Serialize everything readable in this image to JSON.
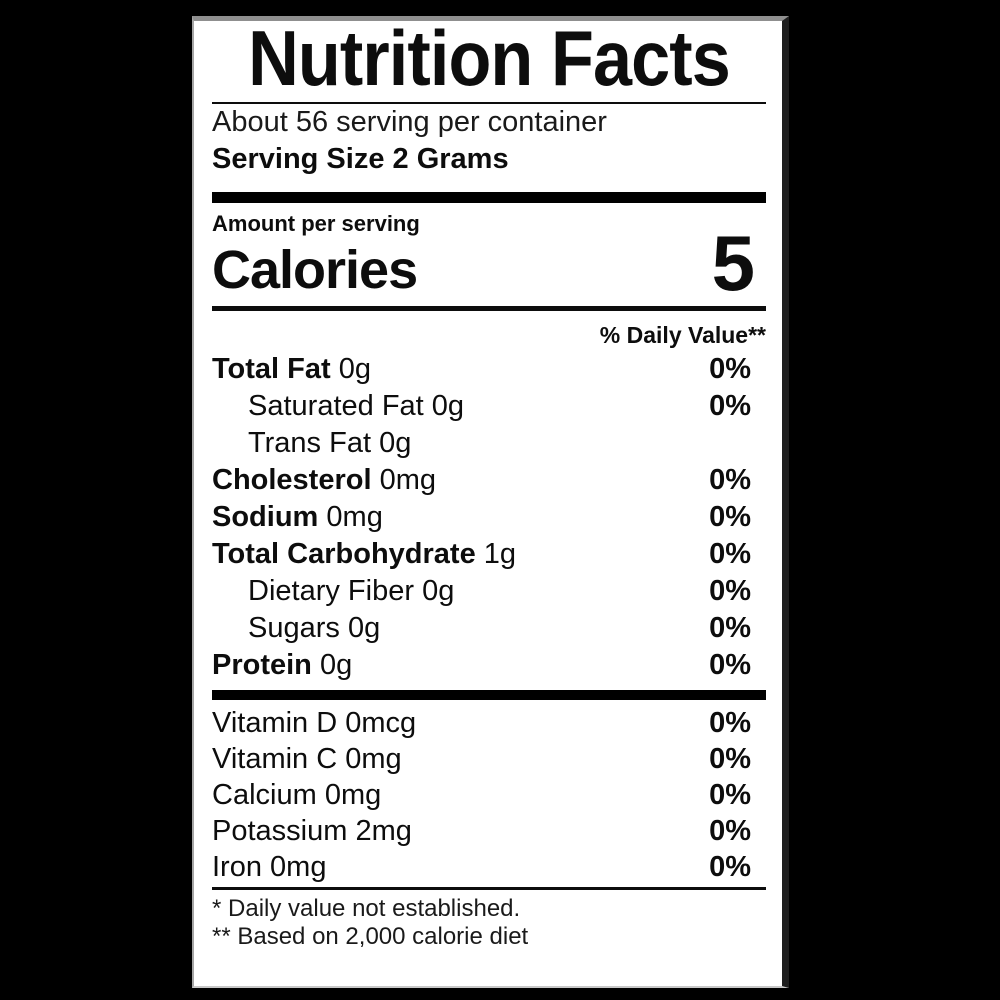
{
  "colors": {
    "background": "#000000",
    "label_background": "#ffffff",
    "text": "#0d0d0d"
  },
  "label": {
    "title": "Nutrition Facts",
    "servings_per_container": "About 56 serving per container",
    "serving_size": "Serving Size 2 Grams",
    "amount_per_serving": "Amount per serving",
    "calories": {
      "label": "Calories",
      "value": "5"
    },
    "daily_value_header": "% Daily Value**",
    "nutrients": [
      {
        "name": "Total Fat",
        "amount": "0g",
        "dv": "0%"
      },
      {
        "name": "Saturated Fat",
        "amount": "0g",
        "dv": "0%"
      },
      {
        "name": "Trans Fat",
        "amount": "0g",
        "dv": ""
      },
      {
        "name": "Cholesterol",
        "amount": "0mg",
        "dv": "0%"
      },
      {
        "name": "Sodium",
        "amount": "0mg",
        "dv": "0%"
      },
      {
        "name": "Total Carbohydrate",
        "amount": "1g",
        "dv": "0%"
      },
      {
        "name": "Dietary Fiber",
        "amount": "0g",
        "dv": "0%"
      },
      {
        "name": "Sugars",
        "amount": "0g",
        "dv": "0%"
      },
      {
        "name": "Protein",
        "amount": "0g",
        "dv": "0%"
      }
    ],
    "micronutrients": [
      {
        "name": "Vitamin D",
        "amount": "0mcg",
        "dv": "0%"
      },
      {
        "name": "Vitamin C",
        "amount": "0mg",
        "dv": "0%"
      },
      {
        "name": "Calcium",
        "amount": "0mg",
        "dv": "0%"
      },
      {
        "name": "Potassium",
        "amount": "2mg",
        "dv": "0%"
      },
      {
        "name": "Iron",
        "amount": "0mg",
        "dv": "0%"
      }
    ],
    "footnotes": [
      "* Daily value not established.",
      "** Based on 2,000 calorie diet"
    ]
  }
}
